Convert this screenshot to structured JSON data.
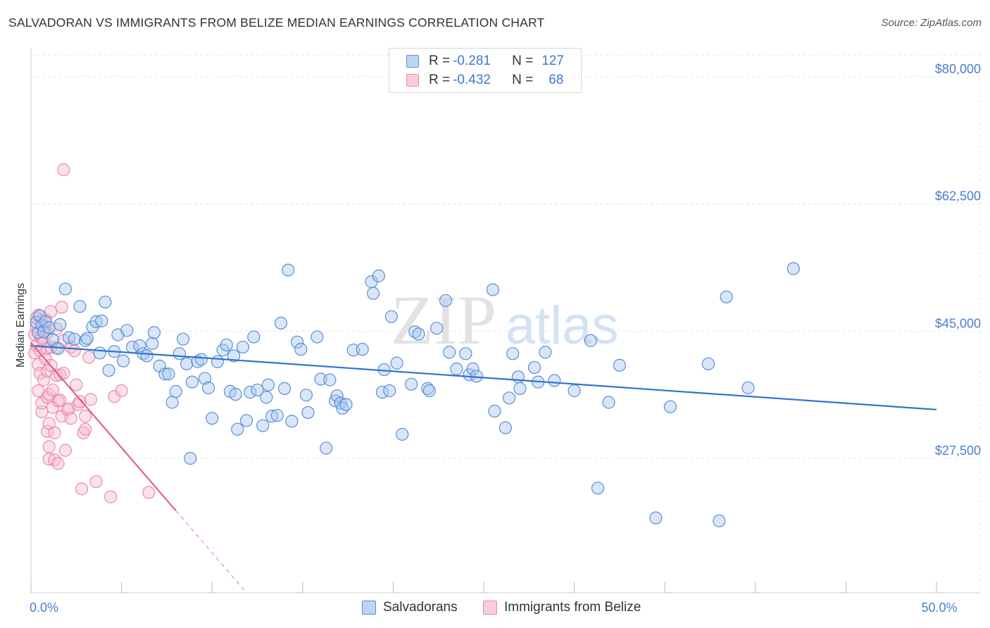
{
  "header": {
    "title": "SALVADORAN VS IMMIGRANTS FROM BELIZE MEDIAN EARNINGS CORRELATION CHART",
    "source": "Source: ZipAtlas.com"
  },
  "watermark": {
    "zip": "ZIP",
    "atlas": "atlas"
  },
  "legend": {
    "rows": [
      {
        "r_label": "R =",
        "r_value": "-0.281",
        "n_label": "N =",
        "n_value": "127"
      },
      {
        "r_label": "R =",
        "r_value": "-0.432",
        "n_label": "N =",
        "n_value": "68"
      }
    ]
  },
  "bottom_legend": {
    "series1": "Salvadorans",
    "series2": "Immigrants from Belize"
  },
  "colors": {
    "blue_fill": "#a9c8f0",
    "blue_stroke": "#5b8fd6",
    "blue_line": "#2f74d0",
    "pink_fill": "#f6bcd0",
    "pink_stroke": "#e98aa9",
    "pink_line": "#e0608b",
    "grid": "#e6e6e6",
    "tick_text": "#4a7fcf"
  },
  "chart_data": {
    "type": "scatter",
    "title": "SALVADORAN VS IMMIGRANTS FROM BELIZE MEDIAN EARNINGS CORRELATION CHART",
    "xlabel": "",
    "ylabel": "Median Earnings",
    "xlim": [
      0,
      50
    ],
    "ylim": [
      9000,
      83000
    ],
    "x_tick_labels": [
      {
        "value": 0,
        "label": "0.0%"
      },
      {
        "value": 50,
        "label": "50.0%"
      }
    ],
    "y_ticks": [
      {
        "value": 27500,
        "label": "$27,500"
      },
      {
        "value": 45000,
        "label": "$45,000"
      },
      {
        "value": 62500,
        "label": "$62,500"
      },
      {
        "value": 80000,
        "label": "$80,000"
      }
    ],
    "series": [
      {
        "name": "Salvadorans",
        "r": -0.281,
        "n": 127,
        "trend": {
          "x": [
            0,
            50
          ],
          "y": [
            43000,
            34200
          ]
        },
        "points": [
          [
            0.3,
            46200
          ],
          [
            0.4,
            44800
          ],
          [
            0.5,
            47100
          ],
          [
            0.6,
            45800
          ],
          [
            0.7,
            44900
          ],
          [
            0.8,
            46300
          ],
          [
            1.0,
            45500
          ],
          [
            1.2,
            43800
          ],
          [
            1.5,
            42600
          ],
          [
            1.6,
            45900
          ],
          [
            1.9,
            50800
          ],
          [
            2.1,
            44100
          ],
          [
            2.4,
            43900
          ],
          [
            2.7,
            48400
          ],
          [
            3.0,
            43700
          ],
          [
            3.1,
            44000
          ],
          [
            3.4,
            45600
          ],
          [
            3.6,
            46300
          ],
          [
            3.8,
            42000
          ],
          [
            3.9,
            46400
          ],
          [
            4.1,
            49000
          ],
          [
            4.3,
            39600
          ],
          [
            4.6,
            42200
          ],
          [
            4.8,
            44500
          ],
          [
            5.1,
            40900
          ],
          [
            5.3,
            45100
          ],
          [
            5.6,
            42800
          ],
          [
            6.0,
            43000
          ],
          [
            6.2,
            41900
          ],
          [
            6.4,
            41600
          ],
          [
            6.7,
            43300
          ],
          [
            6.8,
            44800
          ],
          [
            7.1,
            40200
          ],
          [
            7.4,
            39100
          ],
          [
            7.6,
            39100
          ],
          [
            7.8,
            35200
          ],
          [
            8.0,
            36700
          ],
          [
            8.2,
            41900
          ],
          [
            8.4,
            43900
          ],
          [
            8.6,
            40500
          ],
          [
            8.8,
            27500
          ],
          [
            8.9,
            38000
          ],
          [
            9.2,
            40800
          ],
          [
            9.4,
            41100
          ],
          [
            9.6,
            38500
          ],
          [
            9.8,
            37200
          ],
          [
            10.0,
            33000
          ],
          [
            10.3,
            40800
          ],
          [
            10.6,
            42400
          ],
          [
            10.8,
            43100
          ],
          [
            11.0,
            36700
          ],
          [
            11.2,
            41600
          ],
          [
            11.3,
            36300
          ],
          [
            11.4,
            31500
          ],
          [
            11.7,
            42800
          ],
          [
            11.9,
            32700
          ],
          [
            12.1,
            36600
          ],
          [
            12.3,
            44200
          ],
          [
            12.5,
            36900
          ],
          [
            12.8,
            32000
          ],
          [
            13.0,
            35900
          ],
          [
            13.1,
            37600
          ],
          [
            13.3,
            33300
          ],
          [
            13.6,
            33400
          ],
          [
            13.8,
            46100
          ],
          [
            14.0,
            37100
          ],
          [
            14.2,
            53400
          ],
          [
            14.4,
            32600
          ],
          [
            14.7,
            43500
          ],
          [
            14.9,
            42500
          ],
          [
            15.2,
            36200
          ],
          [
            15.3,
            33800
          ],
          [
            15.8,
            44200
          ],
          [
            16.0,
            38400
          ],
          [
            16.3,
            28900
          ],
          [
            16.5,
            38300
          ],
          [
            16.8,
            35400
          ],
          [
            16.9,
            36100
          ],
          [
            17.1,
            35100
          ],
          [
            17.2,
            34400
          ],
          [
            17.4,
            34900
          ],
          [
            17.8,
            42400
          ],
          [
            18.3,
            42500
          ],
          [
            18.8,
            51800
          ],
          [
            18.9,
            50200
          ],
          [
            19.2,
            52600
          ],
          [
            19.4,
            36600
          ],
          [
            19.5,
            39700
          ],
          [
            19.8,
            36800
          ],
          [
            19.9,
            47000
          ],
          [
            20.2,
            40600
          ],
          [
            20.5,
            30800
          ],
          [
            21.0,
            37700
          ],
          [
            21.2,
            44900
          ],
          [
            21.4,
            44600
          ],
          [
            21.9,
            37100
          ],
          [
            22.0,
            36800
          ],
          [
            22.4,
            45400
          ],
          [
            22.9,
            49200
          ],
          [
            23.1,
            42100
          ],
          [
            23.5,
            39800
          ],
          [
            24.0,
            41900
          ],
          [
            24.2,
            39000
          ],
          [
            24.4,
            39800
          ],
          [
            24.6,
            38800
          ],
          [
            25.5,
            50700
          ],
          [
            25.6,
            34000
          ],
          [
            26.2,
            31700
          ],
          [
            26.4,
            35800
          ],
          [
            26.6,
            41900
          ],
          [
            26.9,
            38700
          ],
          [
            27.0,
            37100
          ],
          [
            27.8,
            40000
          ],
          [
            28.0,
            38000
          ],
          [
            28.4,
            42100
          ],
          [
            28.9,
            38200
          ],
          [
            30.0,
            36800
          ],
          [
            30.9,
            43700
          ],
          [
            31.3,
            23400
          ],
          [
            31.9,
            35200
          ],
          [
            32.5,
            40300
          ],
          [
            34.5,
            19300
          ],
          [
            35.3,
            34600
          ],
          [
            37.4,
            40500
          ],
          [
            38.0,
            18900
          ],
          [
            38.4,
            49700
          ],
          [
            39.6,
            37200
          ],
          [
            42.1,
            53600
          ]
        ]
      },
      {
        "name": "Immigrants from Belize",
        "r": -0.432,
        "n": 68,
        "trend": {
          "x": [
            0,
            8.0
          ],
          "y": [
            43400,
            20300
          ]
        },
        "trend_dashed": {
          "x": [
            8.0,
            11.9
          ],
          "y": [
            20300,
            9000
          ]
        },
        "points": [
          [
            0.2,
            44500
          ],
          [
            0.2,
            42000
          ],
          [
            0.3,
            45600
          ],
          [
            0.3,
            43000
          ],
          [
            0.3,
            46800
          ],
          [
            0.4,
            40400
          ],
          [
            0.4,
            36800
          ],
          [
            0.4,
            47200
          ],
          [
            0.5,
            44200
          ],
          [
            0.5,
            42300
          ],
          [
            0.5,
            39200
          ],
          [
            0.6,
            44000
          ],
          [
            0.6,
            46500
          ],
          [
            0.6,
            33900
          ],
          [
            0.6,
            35100
          ],
          [
            0.7,
            45000
          ],
          [
            0.7,
            43500
          ],
          [
            0.7,
            38300
          ],
          [
            0.8,
            41200
          ],
          [
            0.8,
            46600
          ],
          [
            0.9,
            44800
          ],
          [
            0.9,
            42600
          ],
          [
            0.9,
            39500
          ],
          [
            0.9,
            35900
          ],
          [
            0.9,
            31200
          ],
          [
            1.0,
            36300
          ],
          [
            1.0,
            32300
          ],
          [
            1.0,
            29100
          ],
          [
            1.0,
            27400
          ],
          [
            1.1,
            47700
          ],
          [
            1.1,
            42800
          ],
          [
            1.1,
            40300
          ],
          [
            1.2,
            34500
          ],
          [
            1.2,
            36900
          ],
          [
            1.3,
            31000
          ],
          [
            1.3,
            27300
          ],
          [
            1.4,
            45300
          ],
          [
            1.4,
            38900
          ],
          [
            1.4,
            42700
          ],
          [
            1.5,
            26800
          ],
          [
            1.5,
            35400
          ],
          [
            1.6,
            39000
          ],
          [
            1.6,
            35500
          ],
          [
            1.7,
            48300
          ],
          [
            1.7,
            33300
          ],
          [
            1.8,
            67200
          ],
          [
            1.8,
            43700
          ],
          [
            1.8,
            39200
          ],
          [
            1.9,
            28600
          ],
          [
            2.0,
            34200
          ],
          [
            2.1,
            34300
          ],
          [
            2.2,
            33000
          ],
          [
            2.2,
            42800
          ],
          [
            2.4,
            42300
          ],
          [
            2.5,
            37600
          ],
          [
            2.6,
            34900
          ],
          [
            2.7,
            35300
          ],
          [
            2.8,
            23300
          ],
          [
            2.9,
            31000
          ],
          [
            3.0,
            33300
          ],
          [
            3.0,
            31500
          ],
          [
            3.2,
            41400
          ],
          [
            3.3,
            35600
          ],
          [
            3.6,
            24300
          ],
          [
            4.4,
            22200
          ],
          [
            4.6,
            36000
          ],
          [
            5.0,
            36800
          ],
          [
            6.5,
            22800
          ]
        ]
      }
    ]
  }
}
